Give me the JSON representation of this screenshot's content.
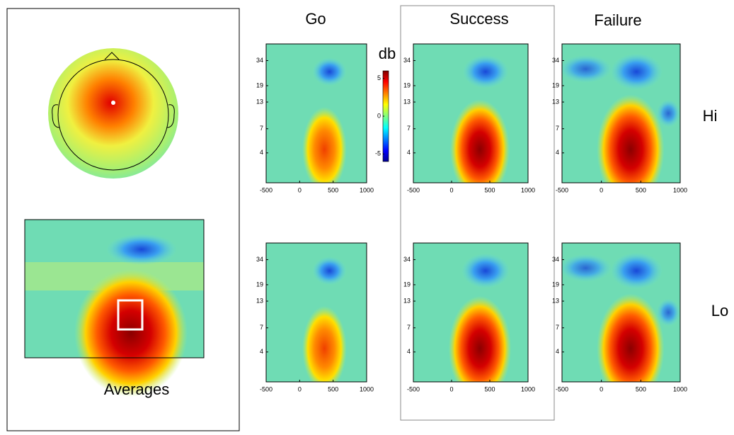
{
  "labels": {
    "averages": "Averages",
    "columns": [
      "Go",
      "Success",
      "Failure"
    ],
    "rows": [
      "Hi",
      "Lo"
    ]
  },
  "chart_data": [
    {
      "type": "heatmap",
      "xlim": [
        -500,
        1000
      ],
      "xticks": [
        -500,
        0,
        500,
        1000
      ],
      "ylim": [
        2,
        50
      ],
      "yticks": [
        4,
        7,
        13,
        19,
        34
      ],
      "log_y": true
    },
    {
      "type": "heatmap",
      "xlim": [
        -500,
        1000
      ],
      "xticks": [
        -500,
        0,
        500,
        1000
      ],
      "ylim": [
        2,
        50
      ],
      "yticks": [
        4,
        7,
        13,
        19,
        34
      ],
      "log_y": true
    },
    {
      "type": "heatmap",
      "xlim": [
        -500,
        1000
      ],
      "xticks": [
        -500,
        0,
        500,
        1000
      ],
      "ylim": [
        2,
        50
      ],
      "yticks": [
        4,
        7,
        13,
        19,
        34
      ],
      "log_y": true
    },
    {
      "type": "heatmap",
      "xlim": [
        -500,
        1000
      ],
      "xticks": [
        -500,
        0,
        500,
        1000
      ],
      "ylim": [
        2,
        50
      ],
      "yticks": [
        4,
        7,
        13,
        19,
        34
      ],
      "log_y": true
    },
    {
      "type": "heatmap",
      "xlim": [
        -500,
        1000
      ],
      "xticks": [
        -500,
        0,
        500,
        1000
      ],
      "ylim": [
        2,
        50
      ],
      "yticks": [
        4,
        7,
        13,
        19,
        34
      ],
      "log_y": true
    },
    {
      "type": "heatmap",
      "xlim": [
        -500,
        1000
      ],
      "xticks": [
        -500,
        0,
        500,
        1000
      ],
      "ylim": [
        2,
        50
      ],
      "yticks": [
        4,
        7,
        13,
        19,
        34
      ],
      "log_y": true
    },
    {
      "type": "colorbar",
      "title": "db",
      "ylim": [
        -6,
        6
      ],
      "yticks": [
        -5,
        0,
        5
      ]
    }
  ]
}
